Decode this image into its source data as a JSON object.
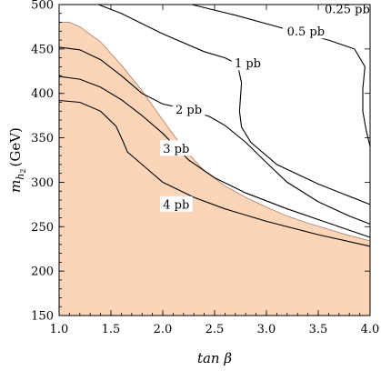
{
  "chart_data": {
    "type": "line",
    "xlabel_symbol": "tan β",
    "ylabel_main": "m",
    "ylabel_sub": "h",
    "ylabel_subsub": "2",
    "ylabel_unit": "(GeV)",
    "xlim": [
      1.0,
      4.0
    ],
    "ylim": [
      150,
      500
    ],
    "x_ticks": [
      1.0,
      1.5,
      2.0,
      2.5,
      3.0,
      3.5,
      4.0
    ],
    "x_tick_labels": [
      "1.0",
      "1.5",
      "2.0",
      "2.5",
      "3.0",
      "3.5",
      "4.0"
    ],
    "y_ticks": [
      150,
      200,
      250,
      300,
      350,
      400,
      450,
      500
    ],
    "y_tick_labels": [
      "150",
      "200",
      "250",
      "300",
      "350",
      "400",
      "450",
      "500"
    ],
    "excluded_region": {
      "color": "#fcd5b8",
      "edge_color": "#a08070",
      "boundary": [
        [
          1.0,
          480
        ],
        [
          1.1,
          480
        ],
        [
          1.2,
          475
        ],
        [
          1.4,
          458
        ],
        [
          1.6,
          432
        ],
        [
          1.8,
          403
        ],
        [
          2.0,
          370
        ],
        [
          2.2,
          338
        ],
        [
          2.4,
          313
        ],
        [
          2.6,
          296
        ],
        [
          2.8,
          283
        ],
        [
          3.0,
          272
        ],
        [
          3.2,
          262
        ],
        [
          3.4,
          254
        ],
        [
          3.6,
          247
        ],
        [
          3.8,
          240
        ],
        [
          4.0,
          234
        ]
      ]
    },
    "contours": [
      {
        "label": "4 pb",
        "label_at": [
          2.13,
          275
        ],
        "points": [
          [
            1.0,
            392
          ],
          [
            1.2,
            390
          ],
          [
            1.4,
            380
          ],
          [
            1.55,
            363
          ],
          [
            1.62,
            345
          ],
          [
            1.66,
            334
          ],
          [
            1.75,
            325
          ],
          [
            2.0,
            300
          ],
          [
            2.3,
            283
          ],
          [
            2.6,
            270
          ],
          [
            3.0,
            256
          ],
          [
            3.5,
            241
          ],
          [
            4.0,
            228
          ]
        ]
      },
      {
        "label": "3 pb",
        "label_at": [
          2.13,
          338
        ],
        "points": [
          [
            1.0,
            419
          ],
          [
            1.2,
            416
          ],
          [
            1.4,
            407
          ],
          [
            1.6,
            393
          ],
          [
            1.8,
            375
          ],
          [
            2.0,
            355
          ],
          [
            2.1,
            343
          ],
          [
            2.25,
            325
          ],
          [
            2.5,
            305
          ],
          [
            2.8,
            288
          ],
          [
            3.2,
            270
          ],
          [
            3.6,
            254
          ],
          [
            4.0,
            238
          ]
        ]
      },
      {
        "label": "2 pb",
        "label_at": [
          2.25,
          382
        ],
        "points": [
          [
            1.0,
            452
          ],
          [
            1.2,
            449
          ],
          [
            1.4,
            438
          ],
          [
            1.6,
            420
          ],
          [
            1.8,
            400
          ],
          [
            2.0,
            388
          ],
          [
            2.2,
            383
          ],
          [
            2.45,
            374
          ],
          [
            2.6,
            364
          ],
          [
            2.8,
            345
          ],
          [
            3.0,
            322
          ],
          [
            3.2,
            300
          ],
          [
            3.5,
            278
          ],
          [
            3.8,
            262
          ],
          [
            4.0,
            253
          ]
        ]
      },
      {
        "label": "1 pb",
        "label_at": [
          2.82,
          434
        ],
        "points": [
          [
            1.38,
            500
          ],
          [
            1.6,
            490
          ],
          [
            2.0,
            467
          ],
          [
            2.4,
            447
          ],
          [
            2.6,
            440
          ],
          [
            2.72,
            433
          ],
          [
            2.76,
            412
          ],
          [
            2.74,
            380
          ],
          [
            2.76,
            362
          ],
          [
            2.85,
            345
          ],
          [
            3.1,
            320
          ],
          [
            3.5,
            298
          ],
          [
            4.0,
            275
          ]
        ]
      },
      {
        "label": "0.5 pb",
        "label_at": [
          3.38,
          470
        ],
        "points": [
          [
            2.28,
            500
          ],
          [
            2.7,
            488
          ],
          [
            3.2,
            472
          ],
          [
            3.6,
            460
          ],
          [
            3.85,
            450
          ],
          [
            3.95,
            430
          ],
          [
            3.93,
            405
          ],
          [
            3.93,
            380
          ],
          [
            3.96,
            360
          ],
          [
            4.0,
            340
          ]
        ]
      },
      {
        "label": "0.25 pb",
        "label_at": [
          3.78,
          495
        ],
        "points": [
          [
            3.82,
            500
          ],
          [
            3.92,
            497
          ],
          [
            4.0,
            494
          ]
        ]
      }
    ]
  }
}
